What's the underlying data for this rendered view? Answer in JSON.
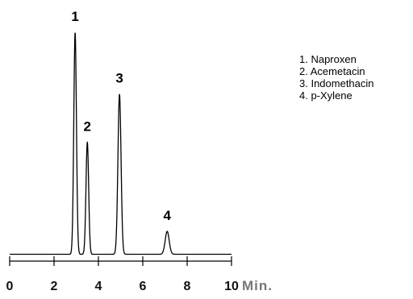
{
  "chart_data": {
    "type": "line",
    "xlabel": "Min.",
    "x_ticks": [
      "0",
      "2",
      "4",
      "6",
      "8",
      "10"
    ],
    "xlim": [
      0,
      10
    ],
    "ylim": [
      0,
      100
    ],
    "baseline": 3,
    "peaks": [
      {
        "label": "1",
        "x": 2.95,
        "height": 100
      },
      {
        "label": "2",
        "x": 3.5,
        "height": 52
      },
      {
        "label": "3",
        "x": 4.95,
        "height": 73
      },
      {
        "label": "4",
        "x": 7.1,
        "height": 13
      }
    ],
    "legend": [
      "1. Naproxen",
      "2. Acemetacin",
      "3. Indomethacin",
      "4. p-Xylene"
    ],
    "line_color": "#000000"
  }
}
